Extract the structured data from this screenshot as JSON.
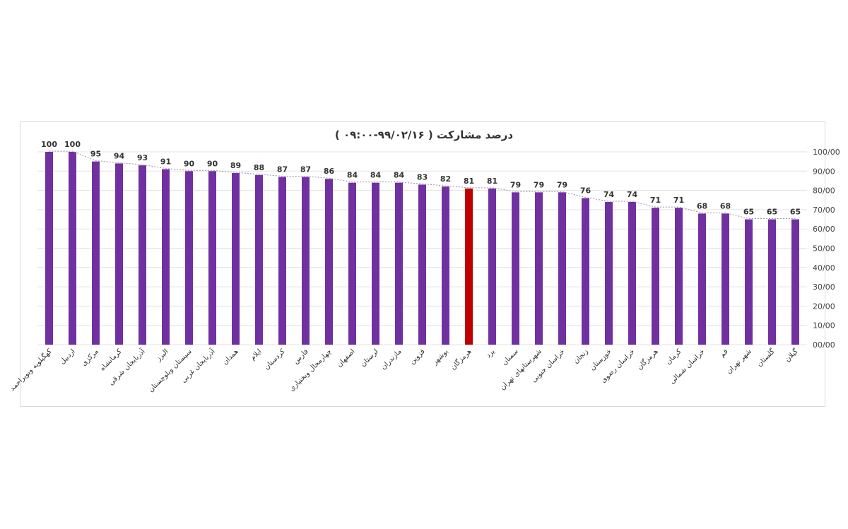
{
  "chart_data": {
    "type": "bar",
    "title": "درصد مشارکت ( ۹۹/۰۲/۱۶-۰۹:۰۰ )",
    "ylim": [
      0,
      100
    ],
    "yticks": [
      "00/00",
      "10/00",
      "20/00",
      "30/00",
      "40/00",
      "50/00",
      "60/00",
      "70/00",
      "80/00",
      "90/00",
      "100/00"
    ],
    "categories": [
      "کهگیلویه وبویراحمد",
      "اردبیل",
      "مرکزی",
      "کرمانشاه",
      "آذربایجان شرقی",
      "البرز",
      "سیستان وبلوچستان",
      "آذربایجان غربی",
      "همدان",
      "ایلام",
      "کردستان",
      "فارس",
      "چهارمحال وبختیاری",
      "اصفهان",
      "لرستان",
      "مازندران",
      "قزوین",
      "بوشهر",
      "هرمزگان",
      "یزد",
      "سمنان",
      "شهرستانهای تهران",
      "خراسان جنوبی",
      "زنجان",
      "خوزستان",
      "خراسان رضوی",
      "هرمزگان",
      "کرمان",
      "خراسان شمالی",
      "قم",
      "شهر تهران",
      "گلستان",
      "گیلان"
    ],
    "values": [
      100,
      100,
      95,
      94,
      93,
      91,
      90,
      90,
      89,
      88,
      87,
      87,
      86,
      84,
      84,
      84,
      83,
      82,
      81,
      81,
      79,
      79,
      79,
      76,
      74,
      74,
      71,
      71,
      68,
      68,
      65,
      65,
      65
    ],
    "highlight_index": 18,
    "trendline": true,
    "grid": true,
    "legend": "none",
    "colors": {
      "bar": "#7030a0",
      "highlight": "#c00000",
      "trend": "#9e8fb0",
      "grid": "#e3e3e3"
    }
  }
}
